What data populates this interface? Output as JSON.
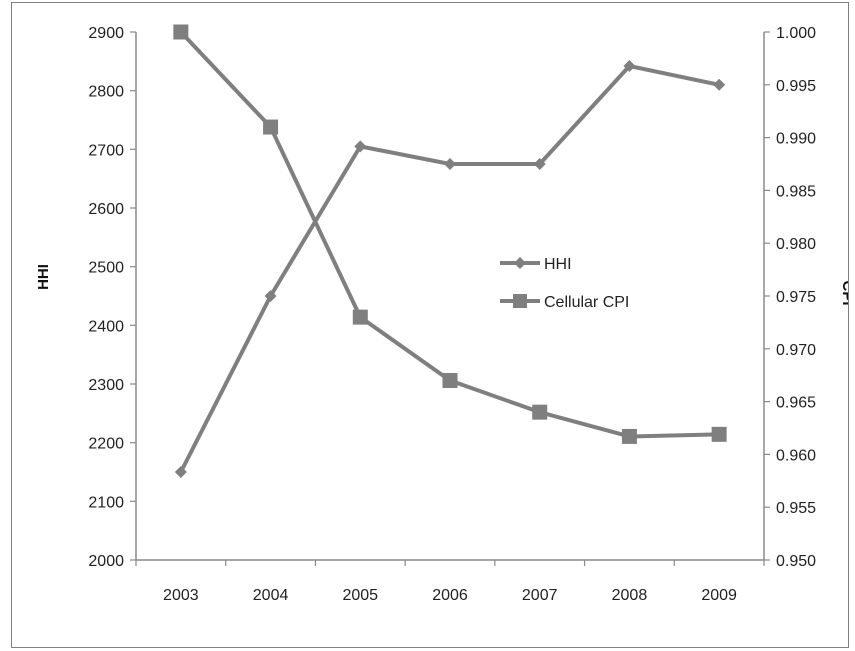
{
  "chart_data": {
    "type": "line",
    "categories": [
      "2003",
      "2004",
      "2005",
      "2006",
      "2007",
      "2008",
      "2009"
    ],
    "series": [
      {
        "name": "HHI",
        "axis": "left",
        "marker": "diamond",
        "values": [
          2150,
          2450,
          2705,
          2675,
          2675,
          2842,
          2810
        ]
      },
      {
        "name": "Cellular CPI",
        "axis": "right",
        "marker": "square",
        "values": [
          1.0,
          0.991,
          0.973,
          0.967,
          0.964,
          0.9617,
          0.9619
        ]
      }
    ],
    "ylabel_left": "HHI",
    "ylabel_right": "CPI",
    "ylim_left": [
      2000,
      2900
    ],
    "ylim_right": [
      0.95,
      1.0
    ],
    "yticks_left": [
      "2000",
      "2100",
      "2200",
      "2300",
      "2400",
      "2500",
      "2600",
      "2700",
      "2800",
      "2900"
    ],
    "yticks_right": [
      "0.950",
      "0.955",
      "0.960",
      "0.965",
      "0.970",
      "0.975",
      "0.980",
      "0.985",
      "0.990",
      "0.995",
      "1.000"
    ],
    "grid": false,
    "legend": "center-right",
    "line_color": "#7f7f7f"
  }
}
